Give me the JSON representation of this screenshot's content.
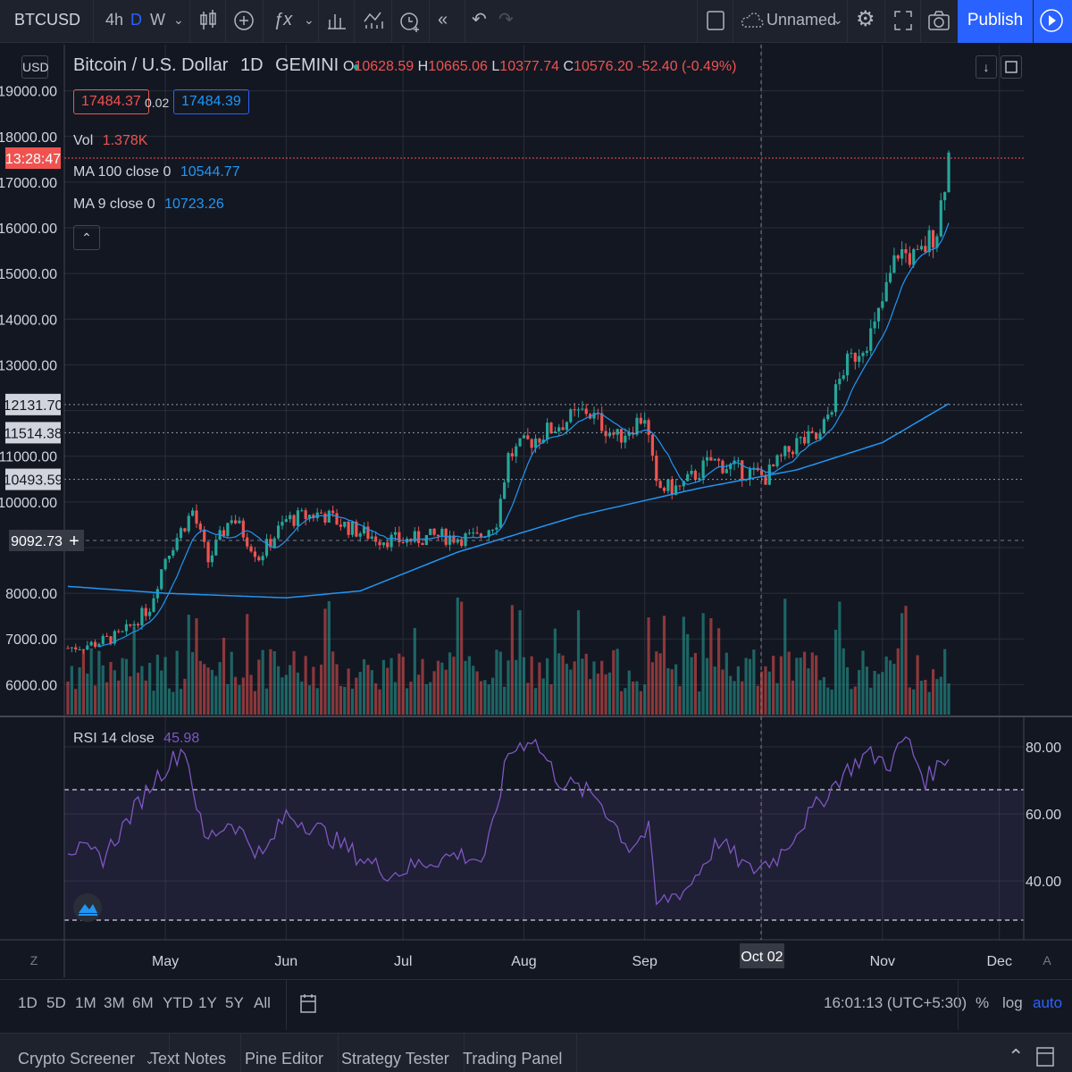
{
  "toolbar": {
    "symbol": "BTCUSD",
    "intervals": [
      "4h",
      "D",
      "W"
    ],
    "layout_name": "Unnamed",
    "publish_label": "Publish"
  },
  "legend": {
    "title": "Bitcoin / U.S. Dollar",
    "interval": "1D",
    "exchange": "GEMINI",
    "o_label": "O",
    "o_value": "10628.59",
    "h_label": "H",
    "h_value": "10665.06",
    "l_label": "L",
    "l_value": "10377.74",
    "c_label": "C",
    "c_value": "10576.20",
    "change": "-52.40 (-0.49%)",
    "bid": "17484.37",
    "spread": "0.02",
    "ask": "17484.39",
    "vol_label": "Vol",
    "vol_value": "1.378K",
    "ma100_label": "MA 100 close 0",
    "ma100_value": "10544.77",
    "ma9_label": "MA 9 close 0",
    "ma9_value": "10723.26",
    "rsi_label": "RSI 14 close",
    "rsi_value": "45.98"
  },
  "price_axis": {
    "currency": "USD",
    "ticks": [
      "19000.00",
      "18000.00",
      "17000.00",
      "16000.00",
      "15000.00",
      "14000.00",
      "13000.00",
      "11000.00",
      "10000.00",
      "8000.00",
      "7000.00",
      "6000.00"
    ],
    "countdown": "13:28:47",
    "markers": [
      {
        "value": "12131.70",
        "price": 12131.7
      },
      {
        "value": "11514.38",
        "price": 11514.38
      },
      {
        "value": "10493.59",
        "price": 10493.59
      }
    ],
    "crosshair_value": "9092.73"
  },
  "rsi_axis": {
    "ticks": [
      "80.00",
      "60.00",
      "40.00"
    ]
  },
  "time_axis": {
    "labels": [
      "May",
      "Jun",
      "Jul",
      "Aug",
      "Sep",
      "Nov",
      "Dec"
    ],
    "crosshair_label": "Oct 02",
    "z_label": "Z",
    "a_label": "A"
  },
  "ranges": {
    "items": [
      "1D",
      "5D",
      "1M",
      "3M",
      "6M",
      "YTD",
      "1Y",
      "5Y",
      "All"
    ],
    "time": "16:01:13 (UTC+5:30)",
    "percent": "%",
    "log": "log",
    "auto": "auto"
  },
  "panel_tabs": [
    "Crypto Screener",
    "Text Notes",
    "Pine Editor",
    "Strategy Tester",
    "Trading Panel"
  ],
  "colors": {
    "up": "#26a69a",
    "down": "#ef5350",
    "ma": "#2196f3",
    "rsi": "#7e57c2",
    "accent": "#2962ff",
    "background": "#131722"
  },
  "chart_data": {
    "type": "candlestick",
    "start": "2020-04-06",
    "end": "2020-11-18",
    "ylim": [
      5400,
      19600
    ],
    "rsi_ylim": [
      23,
      88
    ],
    "rsi_bands": [
      70,
      30
    ],
    "anchors": [
      [
        "2020-04-06",
        6800
      ],
      [
        "2020-04-13",
        6900
      ],
      [
        "2020-04-20",
        7100
      ],
      [
        "2020-04-27",
        7700
      ],
      [
        "2020-05-01",
        8800
      ],
      [
        "2020-05-08",
        9800
      ],
      [
        "2020-05-12",
        8700
      ],
      [
        "2020-05-18",
        9700
      ],
      [
        "2020-05-25",
        8800
      ],
      [
        "2020-06-01",
        9600
      ],
      [
        "2020-06-10",
        9750
      ],
      [
        "2020-06-18",
        9400
      ],
      [
        "2020-06-25",
        9200
      ],
      [
        "2020-07-01",
        9150
      ],
      [
        "2020-07-10",
        9250
      ],
      [
        "2020-07-20",
        9200
      ],
      [
        "2020-07-25",
        9600
      ],
      [
        "2020-07-28",
        11000
      ],
      [
        "2020-08-02",
        11300
      ],
      [
        "2020-08-10",
        11700
      ],
      [
        "2020-08-17",
        12000
      ],
      [
        "2020-08-25",
        11400
      ],
      [
        "2020-09-01",
        11900
      ],
      [
        "2020-09-04",
        10300
      ],
      [
        "2020-09-10",
        10300
      ],
      [
        "2020-09-18",
        10900
      ],
      [
        "2020-09-25",
        10700
      ],
      [
        "2020-10-02",
        10550
      ],
      [
        "2020-10-10",
        11300
      ],
      [
        "2020-10-16",
        11400
      ],
      [
        "2020-10-22",
        12900
      ],
      [
        "2020-10-30",
        13800
      ],
      [
        "2020-11-05",
        15500
      ],
      [
        "2020-11-10",
        15300
      ],
      [
        "2020-11-15",
        16000
      ],
      [
        "2020-11-18",
        17600
      ]
    ],
    "ma100_anchors": [
      [
        "2020-04-06",
        8150
      ],
      [
        "2020-05-01",
        8000
      ],
      [
        "2020-06-01",
        7900
      ],
      [
        "2020-06-20",
        8050
      ],
      [
        "2020-07-15",
        8900
      ],
      [
        "2020-08-15",
        9700
      ],
      [
        "2020-09-15",
        10300
      ],
      [
        "2020-10-10",
        10700
      ],
      [
        "2020-11-01",
        11300
      ],
      [
        "2020-11-18",
        12150
      ]
    ],
    "rsi_anchors": [
      [
        "2020-04-06",
        50
      ],
      [
        "2020-04-15",
        47
      ],
      [
        "2020-04-28",
        70
      ],
      [
        "2020-05-06",
        80
      ],
      [
        "2020-05-11",
        52
      ],
      [
        "2020-05-18",
        58
      ],
      [
        "2020-05-26",
        47
      ],
      [
        "2020-06-01",
        60
      ],
      [
        "2020-06-10",
        55
      ],
      [
        "2020-06-20",
        47
      ],
      [
        "2020-06-28",
        42
      ],
      [
        "2020-07-05",
        45
      ],
      [
        "2020-07-15",
        48
      ],
      [
        "2020-07-22",
        46
      ],
      [
        "2020-07-28",
        78
      ],
      [
        "2020-08-03",
        83
      ],
      [
        "2020-08-10",
        70
      ],
      [
        "2020-08-20",
        65
      ],
      [
        "2020-08-28",
        50
      ],
      [
        "2020-09-02",
        55
      ],
      [
        "2020-09-04",
        33
      ],
      [
        "2020-09-12",
        38
      ],
      [
        "2020-09-20",
        52
      ],
      [
        "2020-09-28",
        43
      ],
      [
        "2020-10-05",
        47
      ],
      [
        "2020-10-12",
        58
      ],
      [
        "2020-10-22",
        72
      ],
      [
        "2020-10-28",
        78
      ],
      [
        "2020-11-03",
        75
      ],
      [
        "2020-11-07",
        83
      ],
      [
        "2020-11-12",
        70
      ],
      [
        "2020-11-18",
        78
      ]
    ]
  }
}
